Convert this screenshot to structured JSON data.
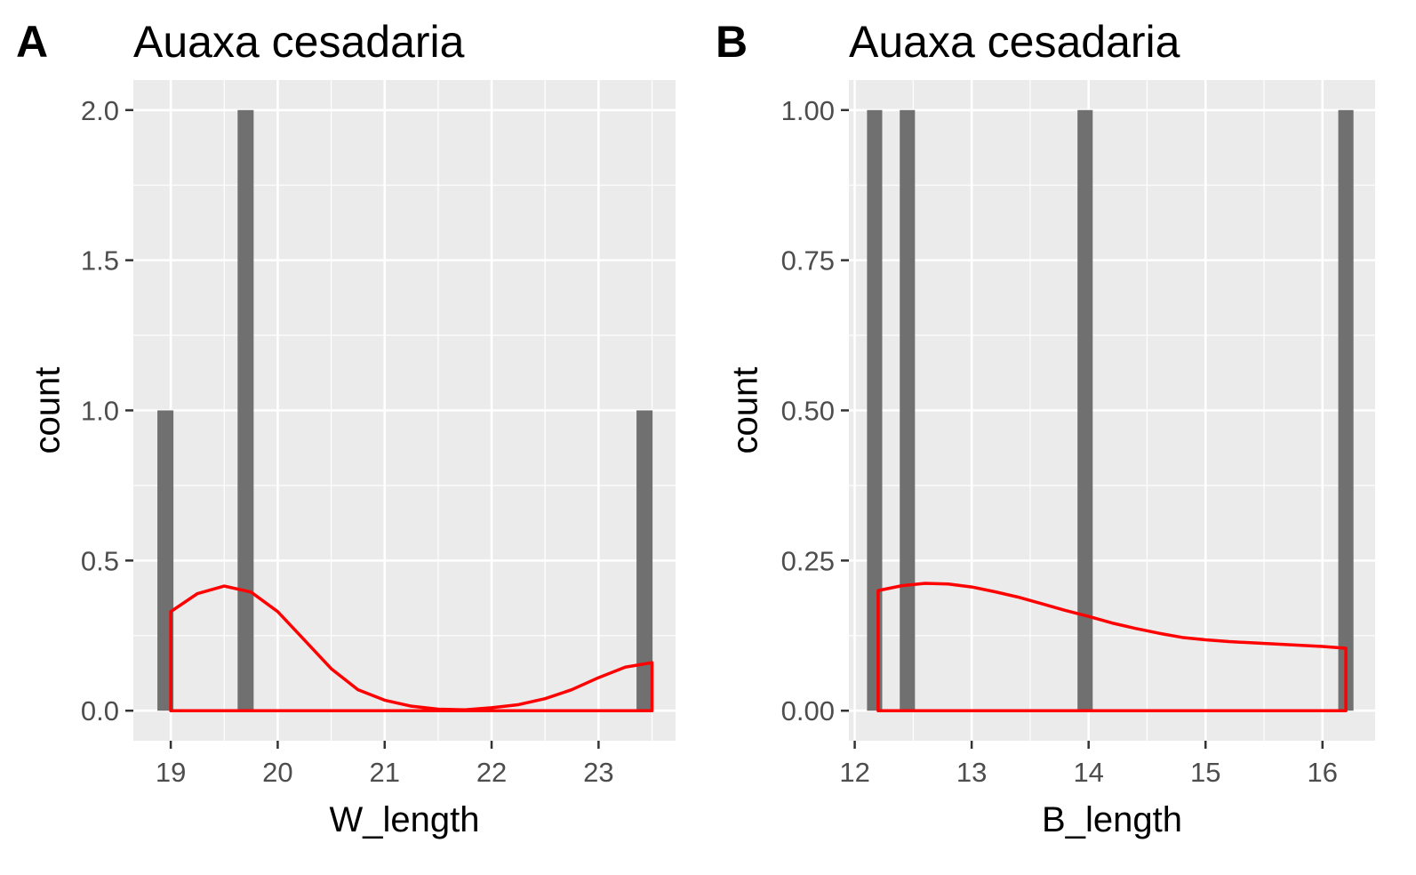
{
  "chart_data": [
    {
      "type": "bar",
      "tag": "A",
      "title": "Auaxa cesadaria",
      "xlabel": "W_length",
      "ylabel": "count",
      "xlim": [
        18.65,
        23.72
      ],
      "ylim": [
        -0.1,
        2.1
      ],
      "xticks": [
        19,
        20,
        21,
        22,
        23
      ],
      "xtick_labels": [
        "19",
        "20",
        "21",
        "22",
        "23"
      ],
      "yticks": [
        0.0,
        0.5,
        1.0,
        1.5,
        2.0
      ],
      "ytick_labels": [
        "0.0",
        "0.5",
        "1.0",
        "1.5",
        "2.0"
      ],
      "grid": true,
      "bar_width": 0.15,
      "bars": [
        {
          "x": 18.95,
          "count": 1
        },
        {
          "x": 19.7,
          "count": 2
        },
        {
          "x": 23.43,
          "count": 1
        }
      ],
      "density_curve": {
        "x": [
          19.0,
          19.25,
          19.5,
          19.75,
          20.0,
          20.25,
          20.5,
          20.75,
          21.0,
          21.25,
          21.5,
          21.75,
          22.0,
          22.25,
          22.5,
          22.75,
          23.0,
          23.25,
          23.5
        ],
        "y": [
          0.33,
          0.39,
          0.415,
          0.395,
          0.33,
          0.235,
          0.14,
          0.07,
          0.035,
          0.015,
          0.005,
          0.003,
          0.01,
          0.02,
          0.04,
          0.07,
          0.11,
          0.145,
          0.16
        ]
      },
      "colors": {
        "bar": "#707070",
        "density": "#ff0000",
        "panel": "#ebebeb",
        "grid": "#ffffff"
      }
    },
    {
      "type": "bar",
      "tag": "B",
      "title": "Auaxa cesadaria",
      "xlabel": "B_length",
      "ylabel": "count",
      "xlim": [
        11.95,
        16.45
      ],
      "ylim": [
        -0.05,
        1.05
      ],
      "xticks": [
        12,
        13,
        14,
        15,
        16
      ],
      "xtick_labels": [
        "12",
        "13",
        "14",
        "15",
        "16"
      ],
      "yticks": [
        0.0,
        0.25,
        0.5,
        0.75,
        1.0
      ],
      "ytick_labels": [
        "0.00",
        "0.25",
        "0.50",
        "0.75",
        "1.00"
      ],
      "grid": true,
      "bar_width": 0.13,
      "bars": [
        {
          "x": 12.17,
          "count": 1
        },
        {
          "x": 12.45,
          "count": 1
        },
        {
          "x": 13.97,
          "count": 1
        },
        {
          "x": 16.2,
          "count": 1
        }
      ],
      "density_curve": {
        "x": [
          12.2,
          12.4,
          12.6,
          12.8,
          13.0,
          13.2,
          13.4,
          13.6,
          13.8,
          14.0,
          14.2,
          14.4,
          14.6,
          14.8,
          15.0,
          15.2,
          15.4,
          15.6,
          15.8,
          16.0,
          16.2
        ],
        "y": [
          0.2,
          0.208,
          0.212,
          0.211,
          0.206,
          0.198,
          0.189,
          0.178,
          0.167,
          0.157,
          0.146,
          0.137,
          0.129,
          0.122,
          0.118,
          0.115,
          0.113,
          0.111,
          0.109,
          0.107,
          0.104
        ]
      },
      "colors": {
        "bar": "#707070",
        "density": "#ff0000",
        "panel": "#ebebeb",
        "grid": "#ffffff"
      }
    }
  ]
}
